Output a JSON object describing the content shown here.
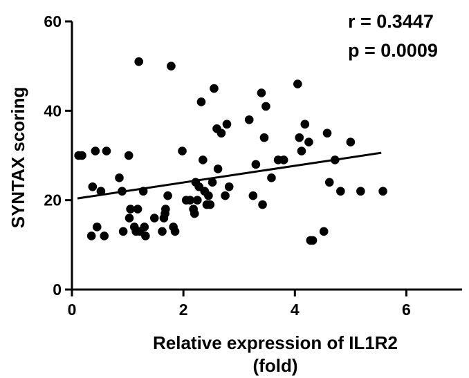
{
  "chart_data": {
    "type": "scatter",
    "title": "",
    "xlabel": "Relative expression of IL1R2",
    "xlabel_line2": "(fold)",
    "ylabel": "SYNTAX scoring",
    "xlim": [
      0,
      7
    ],
    "ylim": [
      0,
      60
    ],
    "x_ticks": [
      0,
      2,
      4,
      6
    ],
    "y_ticks": [
      0,
      20,
      40,
      60
    ],
    "x_tick_labels": [
      "0",
      "2",
      "4",
      "6"
    ],
    "y_tick_labels": [
      "0",
      "20",
      "40",
      "60"
    ],
    "grid": false,
    "legend": "none",
    "annotations": {
      "r": "r = 0.3447",
      "p": "p = 0.0009"
    },
    "regression_line": {
      "x": [
        0.1,
        5.55
      ],
      "y": [
        20.4,
        30.6
      ]
    },
    "points": {
      "x": [
        0.12,
        0.18,
        0.35,
        0.37,
        0.42,
        0.45,
        0.52,
        0.58,
        0.62,
        0.85,
        0.9,
        0.92,
        1.02,
        1.03,
        1.05,
        1.12,
        1.15,
        1.18,
        1.2,
        1.22,
        1.28,
        1.3,
        1.32,
        1.48,
        1.62,
        1.65,
        1.67,
        1.68,
        1.72,
        1.78,
        1.82,
        1.85,
        1.98,
        2.05,
        2.12,
        2.18,
        2.2,
        2.22,
        2.25,
        2.28,
        2.32,
        2.35,
        2.38,
        2.42,
        2.45,
        2.48,
        2.52,
        2.55,
        2.6,
        2.62,
        2.68,
        2.75,
        2.78,
        2.82,
        3.18,
        3.25,
        3.3,
        3.4,
        3.42,
        3.45,
        3.48,
        3.58,
        3.7,
        3.8,
        4.05,
        4.08,
        4.12,
        4.18,
        4.25,
        4.28,
        4.32,
        4.52,
        4.58,
        4.62,
        4.72,
        4.82,
        5.0,
        5.18,
        5.58
      ],
      "y": [
        30,
        30,
        12,
        23,
        31,
        14,
        22,
        12,
        31,
        25,
        22,
        13,
        30,
        16,
        18,
        14,
        13,
        18,
        51,
        13,
        22,
        14,
        12,
        16,
        13,
        16,
        17,
        18,
        21,
        50,
        14,
        13,
        31,
        20,
        20,
        18,
        17,
        24,
        20,
        23,
        42,
        29,
        22,
        19,
        21,
        19,
        24,
        45,
        36,
        27,
        35,
        21,
        37,
        23,
        38,
        21,
        28,
        44,
        19,
        34,
        41,
        25,
        29,
        29,
        46,
        34,
        31,
        37,
        33,
        11,
        11,
        13,
        35,
        24,
        29,
        22,
        33,
        22,
        22
      ]
    }
  }
}
